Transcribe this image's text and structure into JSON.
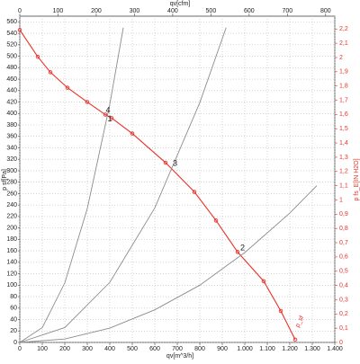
{
  "chart_data": {
    "type": "line",
    "xlabel": "qv[m^3/h]",
    "x2label": "qv[cfm]",
    "ylabel": "p sf[Pa]",
    "y2label": "p fs_E[IN H2O]",
    "xlim": [
      0,
      1400
    ],
    "xticks": [
      0,
      100,
      200,
      300,
      400,
      500,
      600,
      700,
      800,
      900,
      {
        "value": 1000,
        "label": "1.000"
      },
      {
        "value": 1100,
        "label": "1.100"
      },
      {
        "value": 1200,
        "label": "1.200"
      },
      {
        "value": 1300,
        "label": "1.300"
      },
      {
        "value": 1400,
        "label": "1.400"
      }
    ],
    "x2lim": [
      0,
      824
    ],
    "x2ticks": [
      0,
      100,
      200,
      300,
      400,
      500,
      600,
      700,
      800
    ],
    "ylim": [
      0,
      570
    ],
    "yticks": [
      0,
      20,
      40,
      60,
      80,
      100,
      120,
      140,
      160,
      180,
      200,
      220,
      240,
      260,
      280,
      300,
      320,
      340,
      360,
      380,
      400,
      420,
      440,
      460,
      480,
      500,
      520,
      540,
      560
    ],
    "y2lim": [
      0,
      2.29
    ],
    "y2ticks": [
      0,
      {
        "value": 0.1,
        "label": "0,1"
      },
      {
        "value": 0.2,
        "label": "0,2"
      },
      {
        "value": 0.3,
        "label": "0,3"
      },
      {
        "value": 0.4,
        "label": "0,4"
      },
      {
        "value": 0.5,
        "label": "0,5"
      },
      {
        "value": 0.6,
        "label": "0,6"
      },
      {
        "value": 0.7,
        "label": "0,7"
      },
      {
        "value": 0.8,
        "label": "0,8"
      },
      {
        "value": 0.9,
        "label": "0,9"
      },
      1,
      {
        "value": 1.1,
        "label": "1,1"
      },
      {
        "value": 1.2,
        "label": "1,2"
      },
      {
        "value": 1.3,
        "label": "1,3"
      },
      {
        "value": 1.4,
        "label": "1,4"
      },
      {
        "value": 1.5,
        "label": "1,5"
      },
      {
        "value": 1.6,
        "label": "1,6"
      },
      {
        "value": 1.7,
        "label": "1,7"
      },
      {
        "value": 1.8,
        "label": "1,8"
      },
      {
        "value": 1.9,
        "label": "1,9"
      },
      2,
      {
        "value": 2.1,
        "label": "2,1"
      },
      {
        "value": 2.2,
        "label": "2,2"
      }
    ],
    "grid": true,
    "series": [
      {
        "name": "p_sf",
        "color": "#e8322b",
        "markers": true,
        "x": [
          0,
          80,
          136,
          212,
          300,
          380,
          408,
          500,
          648,
          776,
          872,
          968,
          1084,
          1160,
          1224
        ],
        "values": [
          546,
          499,
          472,
          445,
          420,
          398,
          392,
          365,
          314,
          263,
          213,
          158,
          107,
          55,
          5
        ]
      },
      {
        "color": "#8c8c8c",
        "x": [
          0,
          100,
          200,
          300,
          400,
          460
        ],
        "values": [
          0,
          26,
          104,
          234,
          416,
          550
        ]
      },
      {
        "color": "#8c8c8c",
        "x": [
          0,
          200,
          400,
          600,
          800,
          917
        ],
        "values": [
          0,
          26,
          105,
          235,
          419,
          550
        ]
      },
      {
        "color": "#8c8c8c",
        "x": [
          0,
          200,
          400,
          600,
          800,
          1000,
          1200,
          1320
        ],
        "values": [
          0,
          6,
          25,
          57,
          100,
          157,
          226,
          274
        ]
      }
    ],
    "annotations": [
      {
        "text": "4",
        "x": 392,
        "y": 405
      },
      {
        "text": "1",
        "x": 400,
        "y": 390
      },
      {
        "text": "3",
        "x": 690,
        "y": 312
      },
      {
        "text": "2",
        "x": 990,
        "y": 165
      }
    ]
  }
}
